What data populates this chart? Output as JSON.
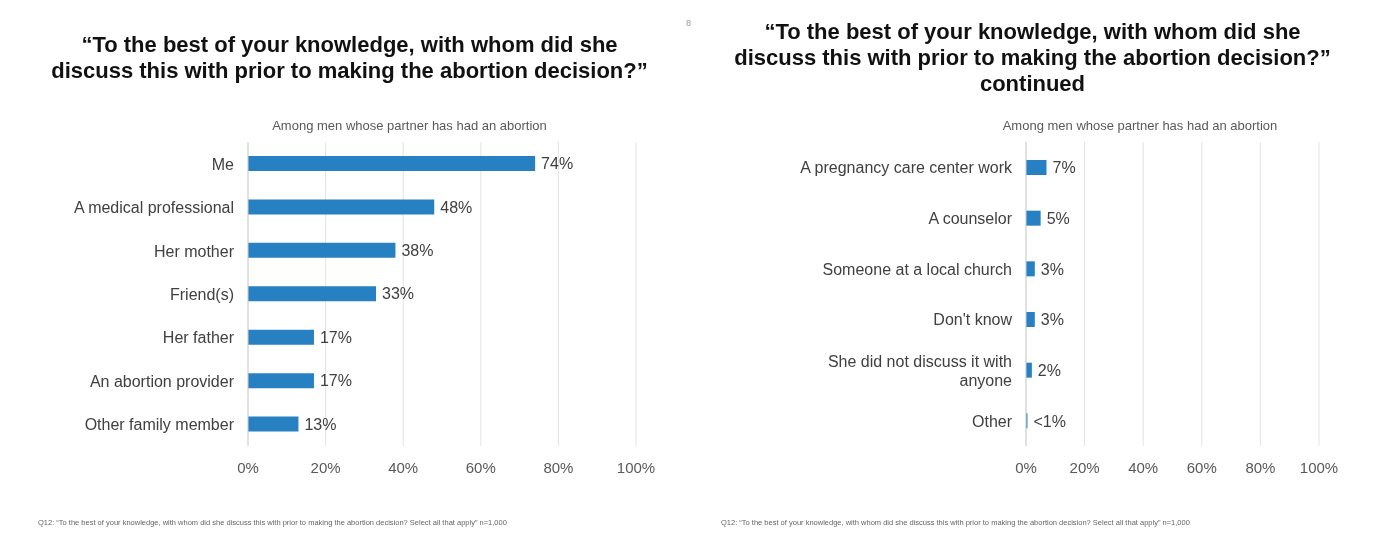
{
  "chart_data": [
    {
      "type": "bar",
      "orientation": "horizontal",
      "title": "“To the best of your knowledge, with whom did she discuss this with prior to making the abortion decision?”",
      "subtitle": "Among men whose partner has had an abortion",
      "categories": [
        "Me",
        "A medical professional",
        "Her mother",
        "Friend(s)",
        "Her father",
        "An abortion provider",
        "Other family member"
      ],
      "values": [
        74,
        48,
        38,
        33,
        17,
        17,
        13
      ],
      "value_labels": [
        "74%",
        "48%",
        "38%",
        "33%",
        "17%",
        "17%",
        "13%"
      ],
      "color": "#2680c2",
      "xlim": [
        0,
        100
      ],
      "xticks": [
        {
          "value": 0,
          "label": "0%"
        },
        {
          "value": 20,
          "label": "20%"
        },
        {
          "value": 40,
          "label": "40%"
        },
        {
          "value": 60,
          "label": "60%"
        },
        {
          "value": 80,
          "label": "80%"
        },
        {
          "value": 100,
          "label": "100%"
        }
      ],
      "grid": "x",
      "legend": false,
      "annotations": [
        "Q12: “To the best of your knowledge, with whom did she discuss this with prior to making the abortion decision? Select all that apply” n=1,000",
        "8"
      ]
    },
    {
      "type": "bar",
      "orientation": "horizontal",
      "title": "“To the best of your knowledge, with whom did she discuss this with prior to making the abortion decision?” continued",
      "subtitle": "Among men whose partner has had an abortion",
      "categories": [
        "A pregnancy care center work",
        "A counselor",
        "Someone at a local church",
        "Don't know",
        "She did not discuss it with anyone",
        "Other"
      ],
      "values": [
        7,
        5,
        3,
        3,
        2,
        0.5
      ],
      "value_labels": [
        "7%",
        "5%",
        "3%",
        "3%",
        "2%",
        "<1%"
      ],
      "color": "#2680c2",
      "xlim": [
        0,
        100
      ],
      "xticks": [
        {
          "value": 0,
          "label": "0%"
        },
        {
          "value": 20,
          "label": "20%"
        },
        {
          "value": 40,
          "label": "40%"
        },
        {
          "value": 60,
          "label": "60%"
        },
        {
          "value": 80,
          "label": "80%"
        },
        {
          "value": 100,
          "label": "100%"
        }
      ],
      "grid": "x",
      "legend": false,
      "annotations": [
        "Q12: “To the best of your knowledge, with whom did she discuss this with prior to making the abortion decision? Select all that apply” n=1,000"
      ]
    }
  ]
}
